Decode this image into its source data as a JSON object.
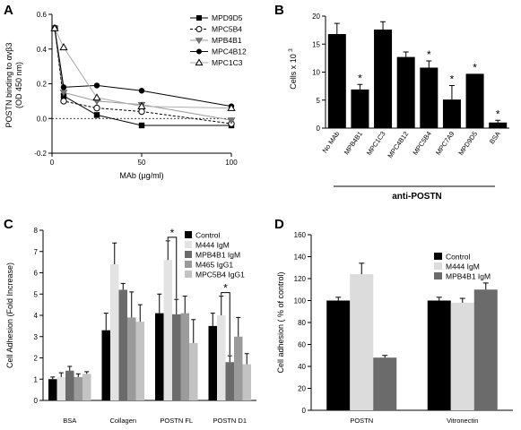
{
  "panels": {
    "A": {
      "letter": "A"
    },
    "B": {
      "letter": "B"
    },
    "C": {
      "letter": "C"
    },
    "D": {
      "letter": "D"
    }
  },
  "chart_data": [
    {
      "panel": "A",
      "type": "line",
      "xlabel": "MAb (µg/ml)",
      "ylabel": "POSTN binding to αvβ3",
      "ylabel2": "(OD 450 nm)",
      "xlim": [
        0,
        100
      ],
      "ylim": [
        -0.2,
        0.6
      ],
      "xticks": [
        0,
        50,
        100
      ],
      "yticks": [
        -0.2,
        0.0,
        0.2,
        0.4,
        0.6
      ],
      "ytick_labels": [
        "-0.2",
        "0.0",
        "0.2",
        "0.4",
        "0.6"
      ],
      "xtick_labels": [
        "0",
        "50",
        "100"
      ],
      "reference_line": 0.0,
      "legend_position": "top-right",
      "x": [
        1.5,
        6.5,
        25,
        50,
        100
      ],
      "series": [
        {
          "name": "MPD9D5",
          "marker": "filled-square",
          "dash": "solid",
          "values": [
            0.52,
            0.13,
            0.02,
            -0.04,
            -0.04
          ]
        },
        {
          "name": "MPC5B4",
          "marker": "open-circle",
          "dash": "dashed",
          "values": [
            0.52,
            0.1,
            0.06,
            0.04,
            -0.03
          ]
        },
        {
          "name": "MPB4B1",
          "marker": "filled-triangle-down",
          "dash": "solid",
          "values": [
            0.52,
            0.15,
            0.1,
            0.08,
            -0.01
          ]
        },
        {
          "name": "MPC4B12",
          "marker": "filled-circle",
          "dash": "solid",
          "values": [
            0.52,
            0.18,
            0.19,
            0.16,
            0.07
          ]
        },
        {
          "name": "MPC1C3",
          "marker": "open-triangle-up",
          "dash": "solid",
          "values": [
            0.52,
            0.41,
            0.12,
            0.07,
            0.06
          ]
        }
      ]
    },
    {
      "panel": "B",
      "type": "bar",
      "ylabel": "Cells x 10",
      "ylabel_sup": "3",
      "group_label": "anti-POSTN",
      "ylim": [
        0,
        20
      ],
      "yticks": [
        0,
        5,
        10,
        15,
        20
      ],
      "ytick_labels": [
        "0",
        "5",
        "10",
        "15",
        "20"
      ],
      "categories": [
        "No MAb",
        "MPB4B1",
        "MPC1C3",
        "MPC4B12",
        "MPC5B4",
        "MPC7A9",
        "MPD9D5",
        "BSA"
      ],
      "values": [
        16.8,
        6.9,
        17.6,
        12.7,
        10.8,
        5.1,
        9.7,
        1.0
      ],
      "errors": [
        1.9,
        0.9,
        1.4,
        0.9,
        1.2,
        2.5,
        0.0,
        0.4
      ],
      "significant": [
        false,
        true,
        false,
        false,
        true,
        true,
        true,
        true
      ],
      "star_symbol": "*",
      "bar_color": "#000000"
    },
    {
      "panel": "C",
      "type": "bar",
      "ylabel": "Cell Adhesion (Fold Increase)",
      "ylim": [
        0,
        8
      ],
      "yticks": [
        0,
        1,
        2,
        3,
        4,
        5,
        6,
        7,
        8
      ],
      "ytick_labels": [
        "0",
        "1",
        "2",
        "3",
        "4",
        "5",
        "6",
        "7",
        "8"
      ],
      "categories": [
        "BSA",
        "Collagen",
        "POSTN FL",
        "POSTN D1"
      ],
      "legend_position": "top-right",
      "star_symbol": "*",
      "brackets": [
        {
          "category": 2,
          "from_series": 1,
          "to_series": 2
        },
        {
          "category": 3,
          "from_series": 1,
          "to_series": 2
        }
      ],
      "series": [
        {
          "name": "Control",
          "color": "#000000",
          "values": [
            1.0,
            3.3,
            4.1,
            3.5
          ],
          "errors": [
            0.1,
            0.8,
            0.9,
            0.6
          ]
        },
        {
          "name": "M444 IgM",
          "color": "#e3e3e3",
          "values": [
            1.1,
            6.4,
            6.6,
            4.0
          ],
          "errors": [
            0.2,
            1.0,
            0.9,
            0.9
          ]
        },
        {
          "name": "MPB4B1 IgM",
          "color": "#6b6b6b",
          "values": [
            1.4,
            5.2,
            4.05,
            1.8
          ],
          "errors": [
            0.2,
            0.3,
            0.7,
            0.3
          ]
        },
        {
          "name": "M465 IgG1",
          "color": "#9b9b9b",
          "values": [
            1.1,
            3.9,
            4.1,
            3.0
          ],
          "errors": [
            0.15,
            1.2,
            0.8,
            0.9
          ]
        },
        {
          "name": "MPC5B4 IgG1",
          "color": "#c3c3c3",
          "values": [
            1.25,
            3.7,
            2.7,
            1.7
          ],
          "errors": [
            0.1,
            0.8,
            1.1,
            0.5
          ]
        }
      ]
    },
    {
      "panel": "D",
      "type": "bar",
      "ylabel": "Cell adhesion ( % of control)",
      "ylim": [
        0,
        160
      ],
      "yticks": [
        0,
        20,
        40,
        60,
        80,
        100,
        120,
        140,
        160
      ],
      "ytick_labels": [
        "0",
        "20",
        "40",
        "60",
        "80",
        "100",
        "120",
        "140",
        "160"
      ],
      "categories": [
        "POSTN",
        "Vitronectin"
      ],
      "legend_position": "top-right",
      "series": [
        {
          "name": "Control",
          "color": "#000000",
          "values": [
            100,
            100
          ],
          "errors": [
            3,
            3
          ]
        },
        {
          "name": "M444 IgM",
          "color": "#dcdcdc",
          "values": [
            124,
            98
          ],
          "errors": [
            10,
            4
          ]
        },
        {
          "name": "MPB4B1 IgM",
          "color": "#6b6b6b",
          "values": [
            48,
            110
          ],
          "errors": [
            2,
            6
          ]
        }
      ]
    }
  ]
}
